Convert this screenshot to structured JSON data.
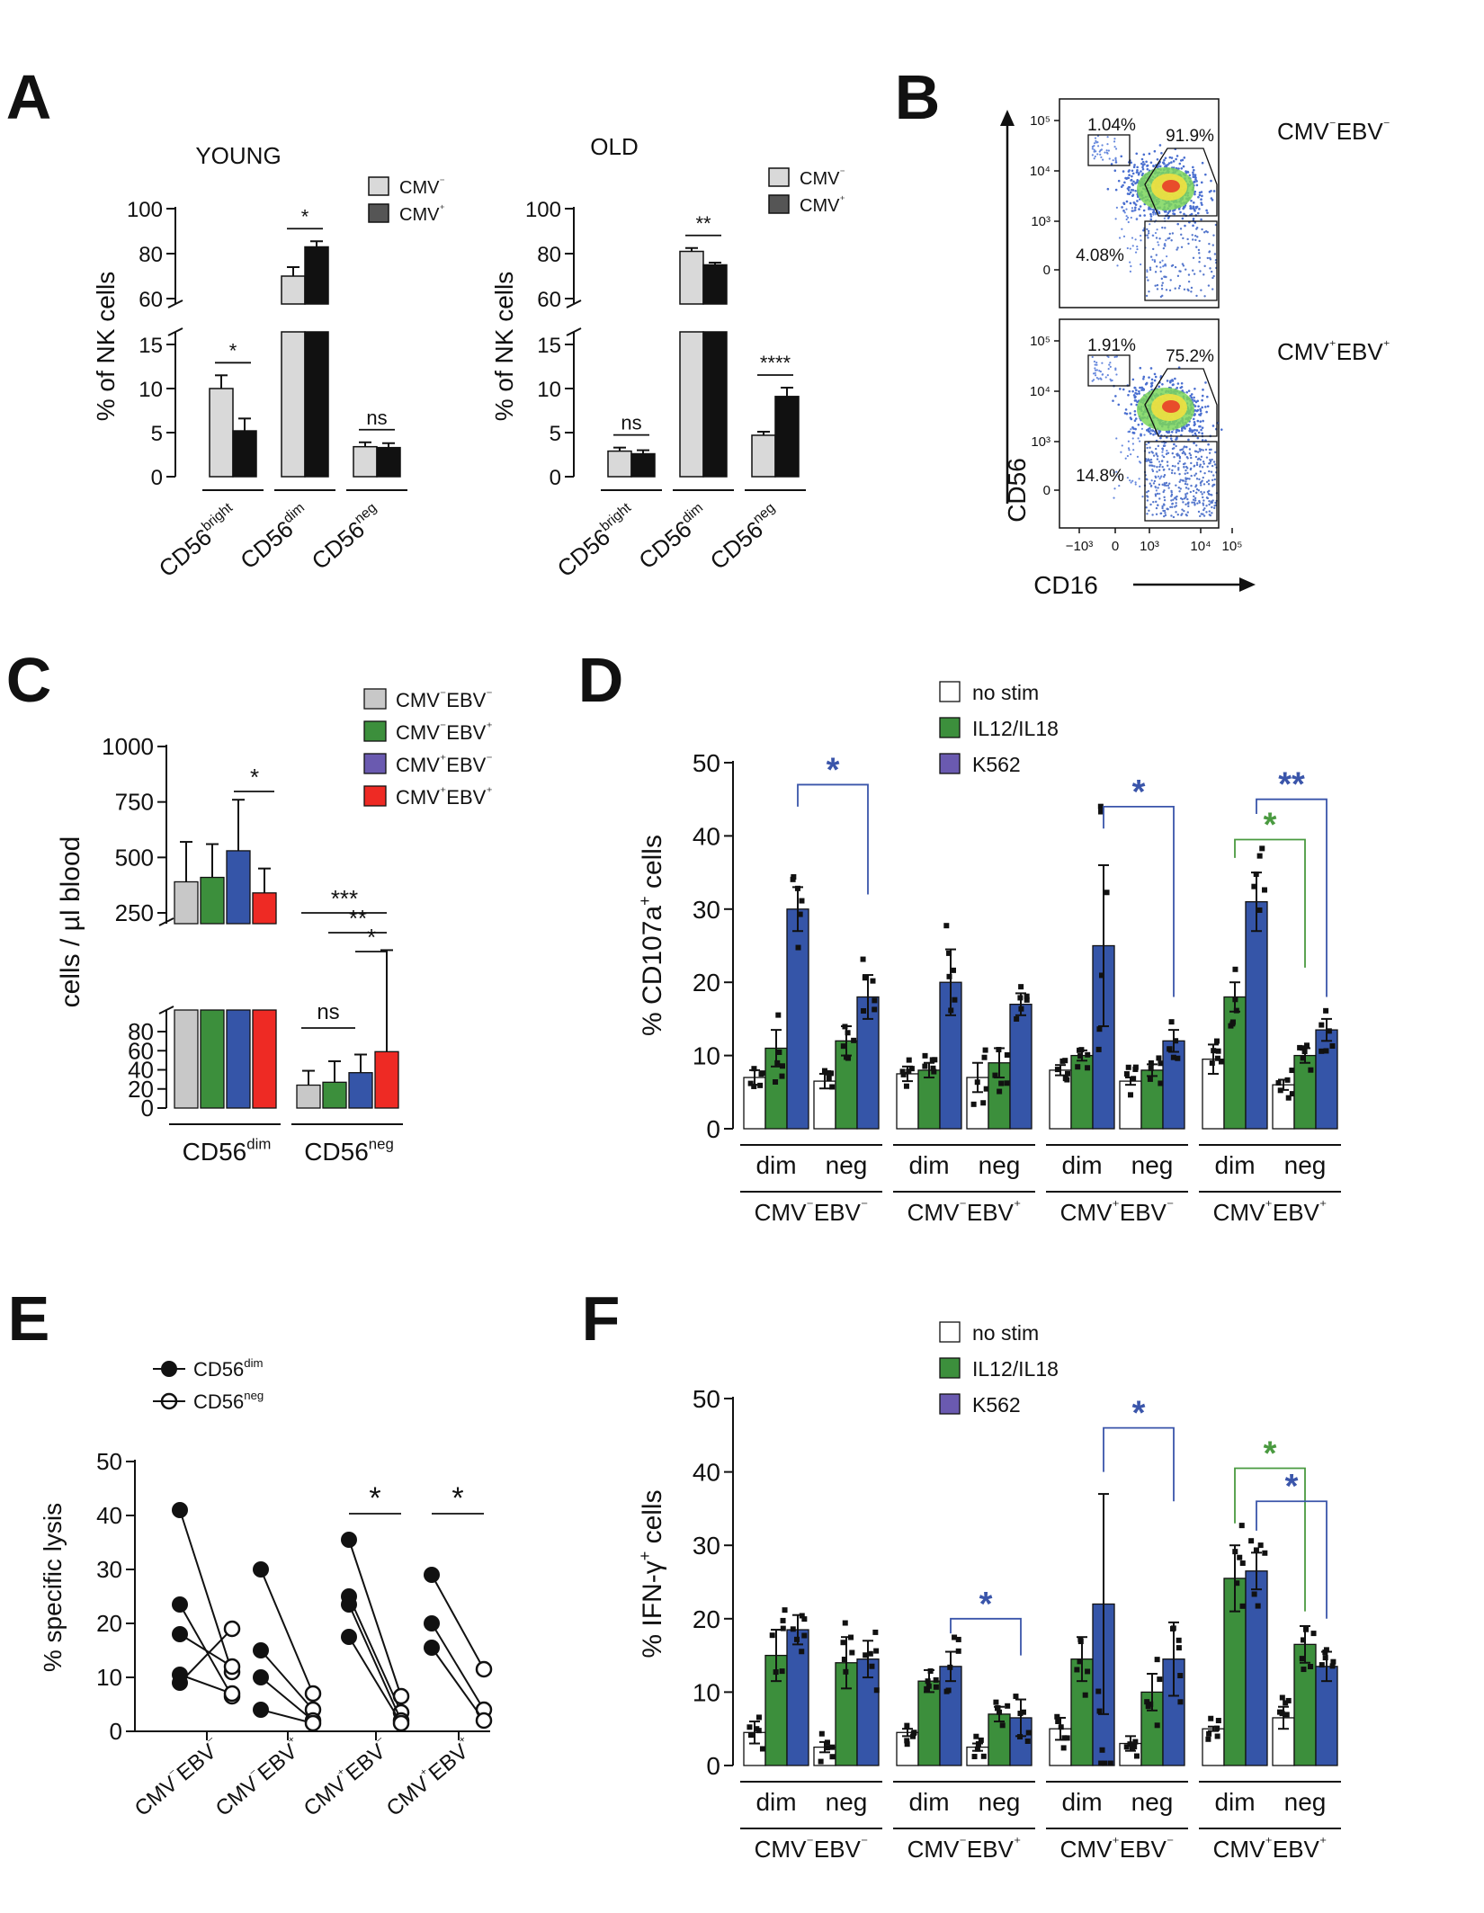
{
  "panels": {
    "A": {
      "letter": "A",
      "young": {
        "title": "YOUNG",
        "ylabel": "% of NK cells",
        "legend": [
          "CMV⁻",
          "CMV⁺"
        ],
        "categories": [
          "CD56bright",
          "CD56dim",
          "CD56neg"
        ],
        "values": [
          [
            10,
            5.2
          ],
          [
            70,
            83
          ],
          [
            3.4,
            3.3
          ]
        ],
        "errors": [
          [
            1.5,
            1.4
          ],
          [
            4,
            2.5
          ],
          [
            0.5,
            0.5
          ]
        ],
        "sig": [
          "*",
          "*",
          "ns"
        ],
        "yticks_low": [
          "0",
          "5",
          "10",
          "15"
        ],
        "yticks_high": [
          "60",
          "80",
          "100"
        ]
      },
      "old": {
        "title": "OLD",
        "ylabel": "% of NK cells",
        "legend": [
          "CMV⁻",
          "CMV⁺"
        ],
        "categories": [
          "CD56bright",
          "CD56dim",
          "CD56neg"
        ],
        "values": [
          [
            2.9,
            2.6
          ],
          [
            81,
            75
          ],
          [
            4.7,
            9.1
          ]
        ],
        "errors": [
          [
            0.4,
            0.4
          ],
          [
            1.5,
            1
          ],
          [
            0.4,
            1
          ]
        ],
        "sig": [
          "ns",
          "**",
          "****"
        ],
        "yticks_low": [
          "0",
          "5",
          "10",
          "15"
        ],
        "yticks_high": [
          "60",
          "80",
          "100"
        ]
      }
    },
    "B": {
      "letter": "B",
      "xlabel": "CD16",
      "ylabel": "CD56",
      "plots": [
        {
          "label": "CMV⁻EBV⁻",
          "gates": [
            "1.04%",
            "91.9%",
            "4.08%"
          ]
        },
        {
          "label": "CMV⁺EBV⁺",
          "gates": [
            "1.91%",
            "75.2%",
            "14.8%"
          ]
        }
      ],
      "yticks": [
        "10⁵",
        "10⁴",
        "10³",
        "0"
      ],
      "xticks": [
        "−10³",
        "0",
        "10³",
        "10⁴",
        "10⁵"
      ]
    },
    "C": {
      "letter": "C",
      "ylabel": "cells / µl blood",
      "legend": [
        "CMV⁻EBV⁻",
        "CMV⁻EBV⁺",
        "CMV⁺EBV⁻",
        "CMV⁺EBV⁺"
      ],
      "categories": [
        "CD56dim",
        "CD56neg"
      ],
      "values": [
        [
          390,
          410,
          530,
          340
        ],
        [
          24,
          27,
          37,
          59
        ]
      ],
      "errors": [
        [
          180,
          150,
          230,
          110
        ],
        [
          15,
          22,
          19,
          23
        ]
      ],
      "sig_labels": [
        "*",
        "***",
        "**",
        "*",
        "ns"
      ],
      "yticks_low": [
        "0",
        "20",
        "40",
        "60",
        "80"
      ],
      "yticks_high": [
        "250",
        "500",
        "750",
        "1000"
      ]
    },
    "D": {
      "letter": "D",
      "ylabel": "% CD107a⁺ cells",
      "legend": [
        "no stim",
        "IL12/IL18",
        "K562"
      ],
      "ylim": [
        0,
        50
      ],
      "yticks": [
        "0",
        "10",
        "20",
        "30",
        "40",
        "50"
      ],
      "subgroups": [
        "dim",
        "neg"
      ],
      "groups": [
        "CMV⁻EBV⁻",
        "CMV⁻EBV⁺",
        "CMV⁺EBV⁻",
        "CMV⁺EBV⁺"
      ],
      "values": [
        [
          7,
          11,
          30
        ],
        [
          6.5,
          12,
          18
        ],
        [
          7.5,
          8,
          20
        ],
        [
          7,
          9,
          17
        ],
        [
          8,
          10,
          25
        ],
        [
          6.5,
          8,
          12
        ],
        [
          9.5,
          18,
          31
        ],
        [
          6,
          10,
          13.5
        ]
      ],
      "errors": [
        [
          1,
          2.5,
          3
        ],
        [
          1,
          2,
          3
        ],
        [
          1,
          1,
          4.5
        ],
        [
          2,
          2,
          1.5
        ],
        [
          0.7,
          0.7,
          11
        ],
        [
          0.5,
          0.8,
          1.5
        ],
        [
          2,
          2,
          4
        ],
        [
          0.7,
          1,
          1.5
        ]
      ],
      "sig_labels": [
        "*",
        "*",
        "**",
        "*"
      ]
    },
    "E": {
      "letter": "E",
      "ylabel": "% specific lysis",
      "legend": [
        "CD56dim",
        "CD56neg"
      ],
      "categories": [
        "CMV⁻EBV⁻",
        "CMV⁻EBV⁺",
        "CMV⁺EBV⁻",
        "CMV⁺EBV⁺"
      ],
      "ylim": [
        0,
        50
      ],
      "yticks": [
        "0",
        "10",
        "20",
        "30",
        "40",
        "50"
      ],
      "pairs": [
        [
          [
            41,
            11
          ],
          [
            23.5,
            6.5
          ],
          [
            18,
            12
          ],
          [
            10.5,
            7
          ],
          [
            9,
            19
          ]
        ],
        [
          [
            30,
            7
          ],
          [
            15,
            4
          ],
          [
            10,
            2
          ],
          [
            4,
            1.5
          ]
        ],
        [
          [
            35.5,
            6.5
          ],
          [
            25,
            3.5
          ],
          [
            23.5,
            2
          ],
          [
            17.5,
            1.5
          ]
        ],
        [
          [
            29,
            11.5
          ],
          [
            20,
            4
          ],
          [
            15.5,
            2
          ]
        ]
      ],
      "sig": [
        "",
        "",
        "*",
        "*"
      ]
    },
    "F": {
      "letter": "F",
      "ylabel": "% IFN-γ⁺ cells",
      "legend": [
        "no stim",
        "IL12/IL18",
        "K562"
      ],
      "ylim": [
        0,
        50
      ],
      "yticks": [
        "0",
        "10",
        "20",
        "30",
        "40",
        "50"
      ],
      "subgroups": [
        "dim",
        "neg"
      ],
      "groups": [
        "CMV⁻EBV⁻",
        "CMV⁻EBV⁺",
        "CMV⁺EBV⁻",
        "CMV⁺EBV⁺"
      ],
      "values": [
        [
          4.5,
          15,
          18.5
        ],
        [
          2.5,
          14,
          14.5
        ],
        [
          4.5,
          11.5,
          13.5
        ],
        [
          2.5,
          7,
          6.5
        ],
        [
          5,
          14.5,
          22
        ],
        [
          3,
          10,
          14.5
        ],
        [
          5,
          25.5,
          26.5
        ],
        [
          6.5,
          16.5,
          13.5
        ]
      ],
      "errors": [
        [
          1.5,
          3.5,
          2
        ],
        [
          0.7,
          3.5,
          2.5
        ],
        [
          0.5,
          1.5,
          2
        ],
        [
          0.5,
          1,
          2.5
        ],
        [
          1.5,
          3,
          15
        ],
        [
          1,
          2.5,
          5
        ],
        [
          0.3,
          4.5,
          2.5
        ],
        [
          1.5,
          2.5,
          2
        ]
      ],
      "sig_labels": [
        "*",
        "*",
        "*",
        "*"
      ]
    }
  },
  "colors": {
    "light_grey": "#d9d9d9",
    "black": "#111111",
    "dark_grey": "#555555",
    "grey_c": "#c8c8c8",
    "green": "#3c8f3c",
    "blue": "#3555a8",
    "red": "#ee2a24",
    "white": "#ffffff",
    "sig_blue": "#3a55aa",
    "sig_green": "#4a9a40",
    "purple_leg": "#6a5ab0"
  }
}
